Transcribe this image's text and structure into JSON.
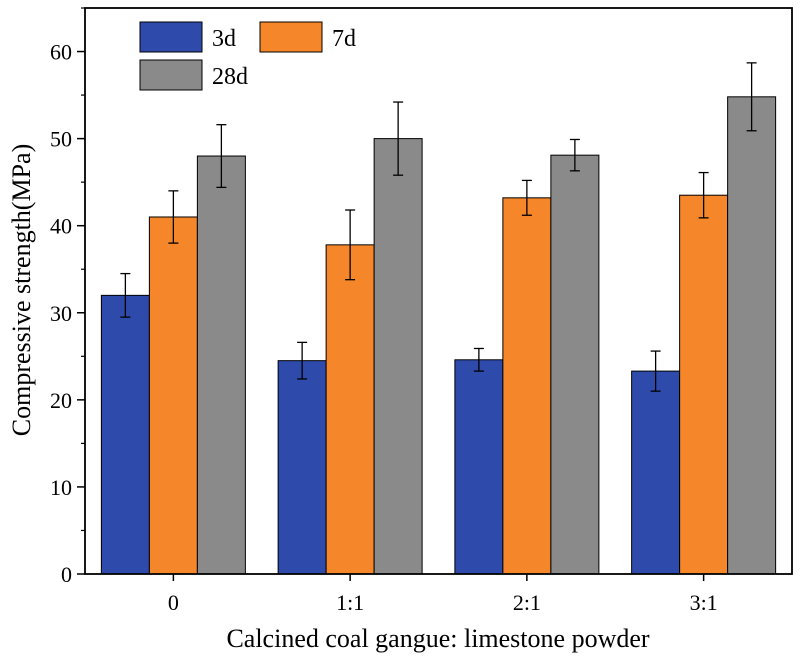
{
  "chart_data": {
    "type": "bar",
    "title": "",
    "xlabel": "Calcined coal gangue: limestone powder",
    "ylabel": "Compressive strength(MPa)",
    "ylim": [
      0,
      65
    ],
    "yticks": [
      0,
      10,
      20,
      30,
      40,
      50,
      60
    ],
    "categories": [
      "0",
      "1:1",
      "2:1",
      "3:1"
    ],
    "series": [
      {
        "name": "3d",
        "color": "#2e4bab",
        "values": [
          32.0,
          24.5,
          24.6,
          23.3
        ],
        "errors": [
          2.5,
          2.1,
          1.3,
          2.3
        ]
      },
      {
        "name": "7d",
        "color": "#f5872a",
        "values": [
          41.0,
          37.8,
          43.2,
          43.5
        ],
        "errors": [
          3.0,
          4.0,
          2.0,
          2.6
        ]
      },
      {
        "name": "28d",
        "color": "#8a8a8a",
        "values": [
          48.0,
          50.0,
          48.1,
          54.8
        ],
        "errors": [
          3.6,
          4.2,
          1.8,
          3.9
        ]
      }
    ],
    "legend_position": "top-left",
    "grid": false
  }
}
